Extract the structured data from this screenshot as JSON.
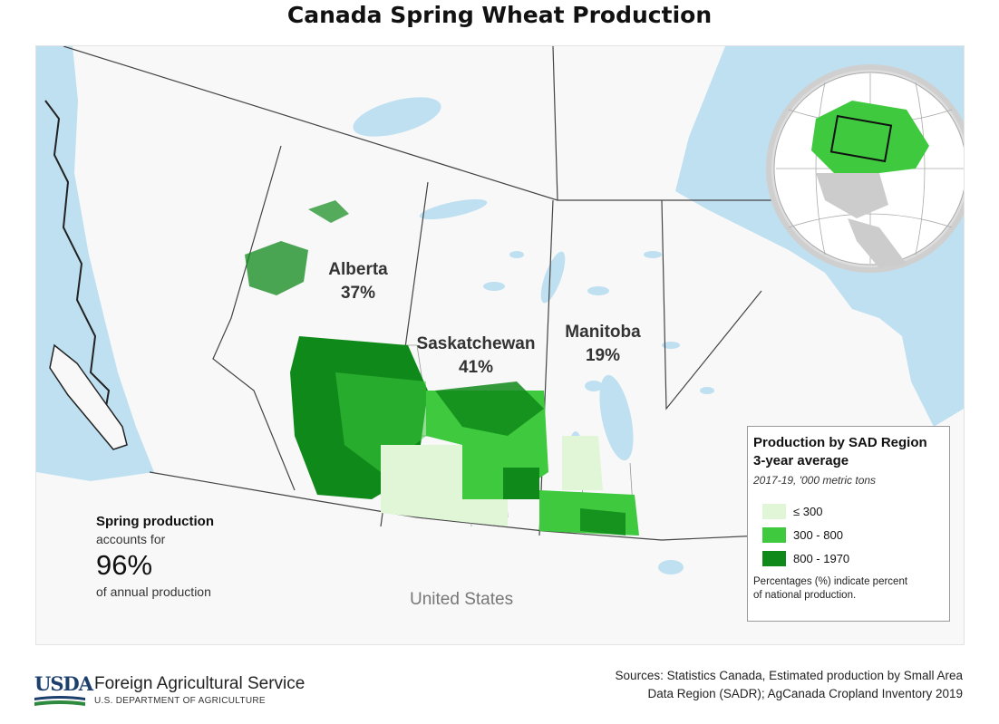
{
  "title": "Canada Spring Wheat Production",
  "map": {
    "regions": [
      {
        "name": "Alberta",
        "percent": "37%"
      },
      {
        "name": "Saskatchewan",
        "percent": "41%"
      },
      {
        "name": "Manitoba",
        "percent": "19%"
      }
    ],
    "country_label": "United States",
    "colors": {
      "water": "#bfe0f1",
      "land": "#f8f8f8",
      "low": "#e0f6d6",
      "mid": "#3ec93e",
      "high": "#0f8a1a"
    }
  },
  "stat": {
    "title": "Spring production",
    "line1": "accounts for",
    "value": "96%",
    "line2": "of annual production"
  },
  "legend": {
    "title_line1": "Production by SAD Region",
    "title_line2": "3-year average",
    "period": "2017-19, '000 metric tons",
    "items": [
      {
        "label": "≤ 300",
        "color": "#e0f6d6"
      },
      {
        "label": "300 - 800",
        "color": "#3ec93e"
      },
      {
        "label": "800 - 1970",
        "color": "#0f8a1a"
      }
    ],
    "note_line1": "Percentages (%) indicate percent",
    "note_line2": "of national production."
  },
  "footer": {
    "logo_text": "USDA",
    "agency": "Foreign Agricultural Service",
    "department": "U.S. DEPARTMENT OF AGRICULTURE",
    "sources_line1": "Sources: Statistics Canada, Estimated production by Small Area",
    "sources_line2": "Data Region (SADR); AgCanada Cropland Inventory 2019"
  }
}
